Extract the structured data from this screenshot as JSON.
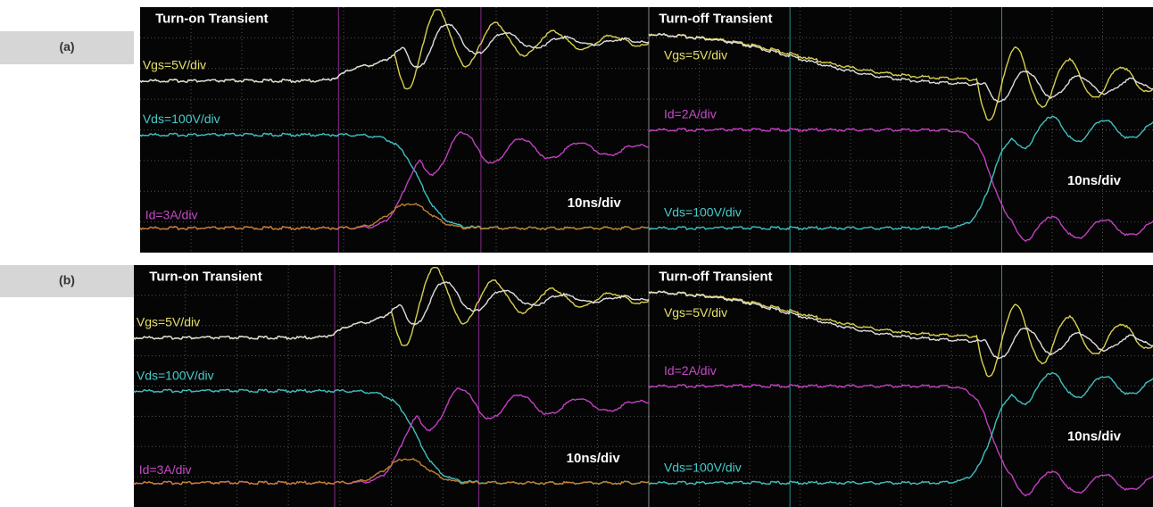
{
  "panels": [
    {
      "label": "(a)",
      "turn_on": {
        "title": "Turn-on Transient",
        "vgs": "Vgs=5V/div",
        "vds": "Vds=100V/div",
        "id": "Id=3A/div",
        "timebase": "10ns/div"
      },
      "turn_off": {
        "title": "Turn-off Transient",
        "vgs": "Vgs=5V/div",
        "id": "Id=2A/div",
        "vds": "Vds=100V/div",
        "timebase": "10ns/div"
      }
    },
    {
      "label": "(b)",
      "turn_on": {
        "title": "Turn-on Transient",
        "vgs": "Vgs=5V/div",
        "vds": "Vds=100V/div",
        "id": "Id=3A/div",
        "timebase": "10ns/div"
      },
      "turn_off": {
        "title": "Turn-off Transient",
        "vgs": "Vgs=5V/div",
        "id": "Id=2A/div",
        "vds": "Vds=100V/div",
        "timebase": "10ns/div"
      }
    }
  ]
}
